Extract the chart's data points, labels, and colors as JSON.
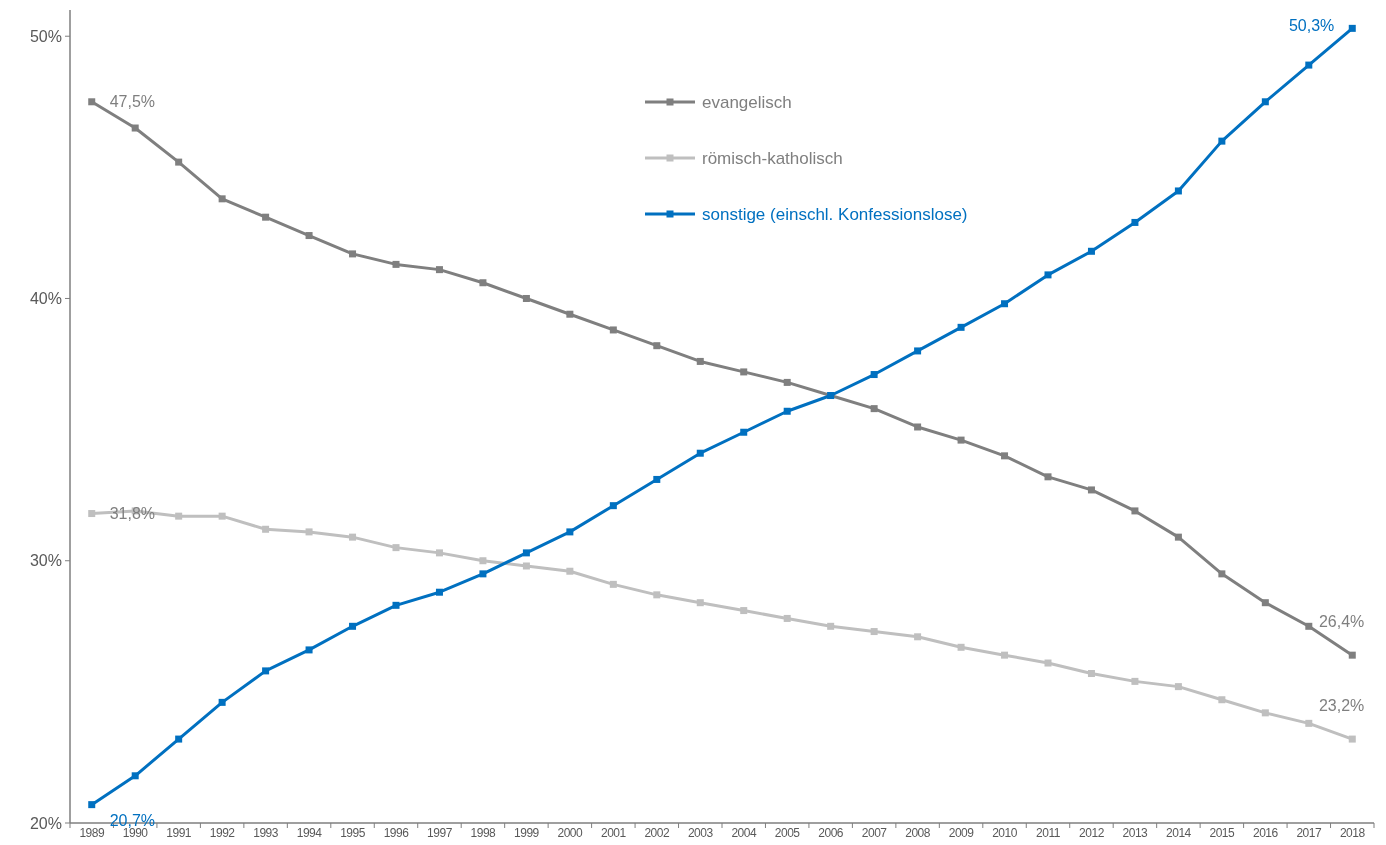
{
  "chart_data": {
    "type": "line",
    "categories": [
      "1989",
      "1990",
      "1991",
      "1992",
      "1993",
      "1994",
      "1995",
      "1996",
      "1997",
      "1998",
      "1999",
      "2000",
      "2001",
      "2002",
      "2003",
      "2004",
      "2005",
      "2006",
      "2007",
      "2008",
      "2009",
      "2010",
      "2011",
      "2012",
      "2013",
      "2014",
      "2015",
      "2016",
      "2017",
      "2018"
    ],
    "series": [
      {
        "name": "evangelisch",
        "color": "#7f7f7f",
        "values": [
          47.5,
          46.5,
          45.2,
          43.8,
          43.1,
          42.4,
          41.7,
          41.3,
          41.1,
          40.6,
          40.0,
          39.4,
          38.8,
          38.2,
          37.6,
          37.2,
          36.8,
          36.3,
          35.8,
          35.1,
          34.6,
          34.0,
          33.2,
          32.7,
          31.9,
          30.9,
          29.5,
          28.4,
          27.5,
          26.4
        ],
        "value_labels": [
          "47,5%",
          null,
          null,
          null,
          null,
          null,
          null,
          null,
          null,
          null,
          null,
          null,
          null,
          null,
          null,
          null,
          null,
          null,
          null,
          null,
          null,
          null,
          null,
          null,
          null,
          null,
          null,
          null,
          null,
          "26,4%"
        ]
      },
      {
        "name": "römisch-katholisch",
        "color": "#bfbfbf",
        "values": [
          31.8,
          31.9,
          31.7,
          31.7,
          31.2,
          31.1,
          30.9,
          30.5,
          30.3,
          30.0,
          29.8,
          29.6,
          29.1,
          28.7,
          28.4,
          28.1,
          27.8,
          27.5,
          27.3,
          27.1,
          26.7,
          26.4,
          26.1,
          25.7,
          25.4,
          25.2,
          24.7,
          24.2,
          23.8,
          23.2
        ],
        "value_labels": [
          "31,8%",
          null,
          null,
          null,
          null,
          null,
          null,
          null,
          null,
          null,
          null,
          null,
          null,
          null,
          null,
          null,
          null,
          null,
          null,
          null,
          null,
          null,
          null,
          null,
          null,
          null,
          null,
          null,
          null,
          "23,2%"
        ]
      },
      {
        "name": "sonstige (einschl. Konfessionslose)",
        "color": "#0070c0",
        "values": [
          20.7,
          21.8,
          23.2,
          24.6,
          25.8,
          26.6,
          27.5,
          28.3,
          28.8,
          29.5,
          30.3,
          31.1,
          32.1,
          33.1,
          34.1,
          34.9,
          35.7,
          36.3,
          37.1,
          38.0,
          38.9,
          39.8,
          40.9,
          41.8,
          42.9,
          44.1,
          46.0,
          47.5,
          48.9,
          50.3
        ],
        "value_labels": [
          "20,7%",
          null,
          null,
          null,
          null,
          null,
          null,
          null,
          null,
          null,
          null,
          null,
          null,
          null,
          null,
          null,
          null,
          null,
          null,
          null,
          null,
          null,
          null,
          null,
          null,
          null,
          null,
          null,
          null,
          "50,3%"
        ]
      }
    ],
    "ylim": [
      20,
      51
    ],
    "yticks": [
      {
        "value": 20,
        "label": "20%"
      },
      {
        "value": 30,
        "label": "30%"
      },
      {
        "value": 40,
        "label": "40%"
      },
      {
        "value": 50,
        "label": "50%"
      }
    ],
    "grid": false,
    "legend": "top",
    "marker": "square",
    "line_style": "solid"
  }
}
